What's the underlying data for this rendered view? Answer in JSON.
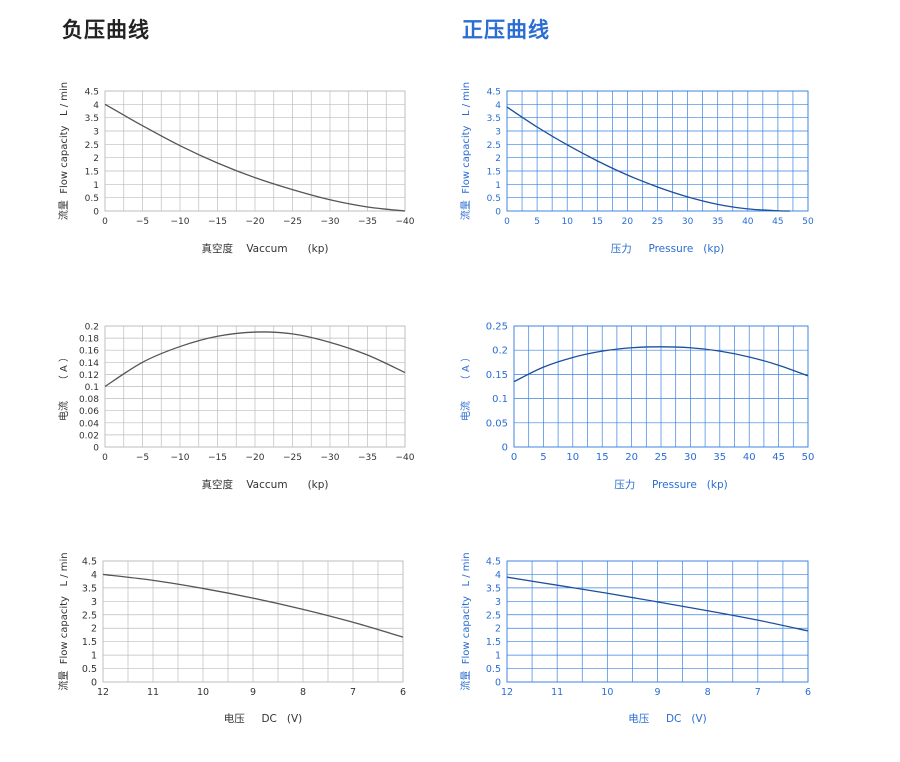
{
  "titles": {
    "negative": "负压曲线",
    "positive": "正压曲线"
  },
  "colors": {
    "negative_text": "#222222",
    "negative_line": "#555555",
    "negative_grid": "#bdbdbd",
    "positive_text": "#2a6dd3",
    "positive_line": "#1c4f9c",
    "positive_grid": "#3b82e0"
  },
  "chart_data": [
    {
      "id": "neg-flow",
      "type": "line",
      "ylabel": "流量  Flow capacity   L / min",
      "xlabel": "真空度    Vaccum      (kp)",
      "x_ticks": [
        0,
        -5,
        -10,
        -15,
        -20,
        -25,
        -30,
        -35,
        -40
      ],
      "y_ticks": [
        0,
        0.5,
        1,
        1.5,
        2,
        2.5,
        3,
        3.5,
        4,
        4.5
      ],
      "xlim": [
        0,
        -40
      ],
      "ylim": [
        0,
        4.5
      ],
      "grid": true,
      "series": [
        {
          "x": [
            0,
            -5,
            -10,
            -15,
            -20,
            -25,
            -30,
            -35,
            -40
          ],
          "y": [
            4.0,
            3.2,
            2.45,
            1.8,
            1.25,
            0.8,
            0.42,
            0.15,
            0.0
          ]
        }
      ]
    },
    {
      "id": "neg-current",
      "type": "line",
      "ylabel": "电流     （ A ）",
      "xlabel": "真空度    Vaccum      (kp)",
      "x_ticks": [
        0,
        -5,
        -10,
        -15,
        -20,
        -25,
        -30,
        -35,
        -40
      ],
      "y_ticks": [
        0,
        0.02,
        0.04,
        0.06,
        0.08,
        0.1,
        0.12,
        0.14,
        0.16,
        0.18,
        0.2
      ],
      "xlim": [
        0,
        -40
      ],
      "ylim": [
        0,
        0.2
      ],
      "grid": true,
      "series": [
        {
          "x": [
            0,
            -5,
            -10,
            -15,
            -20,
            -25,
            -30,
            -35,
            -40
          ],
          "y": [
            0.1,
            0.14,
            0.166,
            0.183,
            0.19,
            0.187,
            0.173,
            0.152,
            0.123
          ]
        }
      ]
    },
    {
      "id": "neg-voltage",
      "type": "line",
      "ylabel": "流量  Flow capacity   L / min",
      "xlabel": "电压     DC   (V)",
      "x_ticks": [
        12,
        11,
        10,
        9,
        8,
        7,
        6
      ],
      "y_ticks": [
        0,
        0.5,
        1,
        1.5,
        2,
        2.5,
        3,
        3.5,
        4,
        4.5
      ],
      "xlim": [
        12,
        6
      ],
      "ylim": [
        0,
        4.5
      ],
      "grid": true,
      "series": [
        {
          "x": [
            12,
            11,
            10,
            9,
            8,
            7,
            6
          ],
          "y": [
            4.0,
            3.78,
            3.48,
            3.12,
            2.7,
            2.22,
            1.67
          ]
        }
      ]
    },
    {
      "id": "pos-flow",
      "type": "line",
      "ylabel": "流量  Flow capacity   L / min",
      "xlabel": "压力     Pressure   (kp)",
      "x_ticks": [
        0,
        5,
        10,
        15,
        20,
        25,
        30,
        35,
        40,
        45,
        50
      ],
      "y_ticks": [
        0,
        0.5,
        1,
        1.5,
        2,
        2.5,
        3,
        3.5,
        4,
        4.5
      ],
      "xlim": [
        0,
        50
      ],
      "ylim": [
        0,
        4.5
      ],
      "grid": true,
      "series": [
        {
          "x": [
            0,
            5,
            10,
            15,
            20,
            25,
            30,
            35,
            40,
            45,
            47
          ],
          "y": [
            3.9,
            3.15,
            2.48,
            1.88,
            1.35,
            0.9,
            0.53,
            0.25,
            0.08,
            0.01,
            0.0
          ]
        }
      ]
    },
    {
      "id": "pos-current",
      "type": "line",
      "ylabel": "电流     （ A ）",
      "xlabel": "压力     Pressure   (kp)",
      "x_ticks": [
        0,
        5,
        10,
        15,
        20,
        25,
        30,
        35,
        40,
        45,
        50
      ],
      "y_ticks": [
        0,
        0.05,
        0.1,
        0.15,
        0.2,
        0.25
      ],
      "xlim": [
        0,
        50
      ],
      "ylim": [
        0,
        0.25
      ],
      "grid": true,
      "series": [
        {
          "x": [
            0,
            5,
            10,
            15,
            20,
            25,
            30,
            35,
            40,
            45,
            50
          ],
          "y": [
            0.135,
            0.165,
            0.185,
            0.198,
            0.205,
            0.207,
            0.205,
            0.198,
            0.186,
            0.169,
            0.147
          ]
        }
      ]
    },
    {
      "id": "pos-voltage",
      "type": "line",
      "ylabel": "流量  Flow capacity   L / min",
      "xlabel": "电压     DC   (V)",
      "x_ticks": [
        12,
        11,
        10,
        9,
        8,
        7,
        6
      ],
      "y_ticks": [
        0,
        0.5,
        1,
        1.5,
        2,
        2.5,
        3,
        3.5,
        4,
        4.5
      ],
      "xlim": [
        12,
        6
      ],
      "ylim": [
        0,
        4.5
      ],
      "grid": true,
      "series": [
        {
          "x": [
            12,
            11,
            10,
            9,
            8,
            7,
            6
          ],
          "y": [
            3.9,
            3.6,
            3.3,
            2.98,
            2.65,
            2.3,
            1.9
          ]
        }
      ]
    }
  ]
}
